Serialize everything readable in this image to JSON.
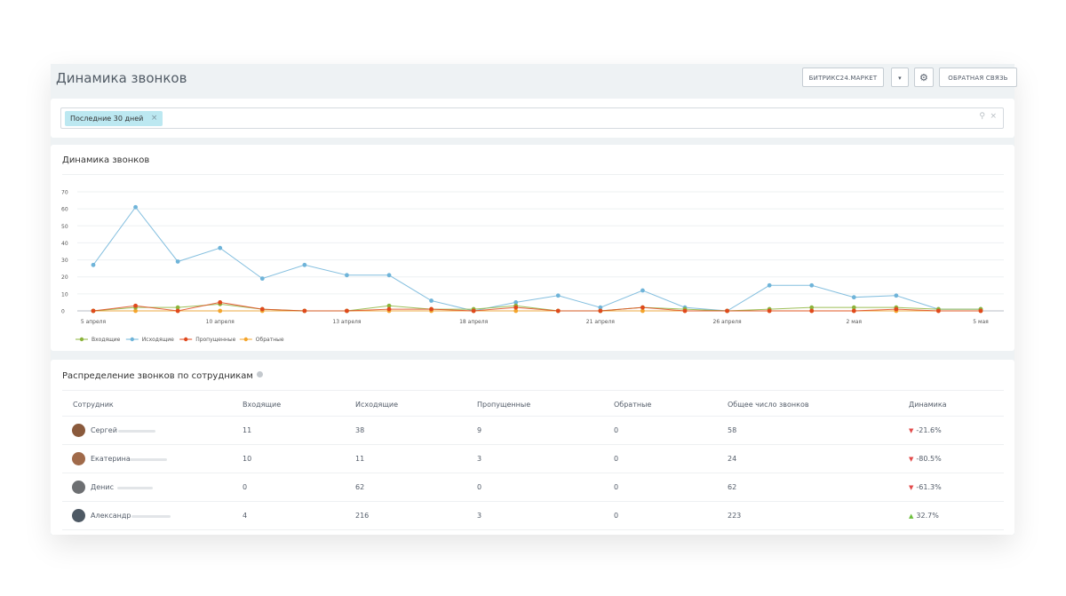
{
  "header": {
    "title": "Динамика звонков",
    "market_label": "БИТРИКС24.МАРКЕТ",
    "dropdown_icon": "▾",
    "gear_icon": "⚙",
    "feedback_label": "ОБРАТНАЯ СВЯЗЬ"
  },
  "filter": {
    "chip_label": "Последние 30 дней",
    "chip_remove_icon": "×",
    "search_icon": "⚲",
    "clear_icon": "×"
  },
  "chart_data": {
    "type": "line",
    "title": "Динамика звонков",
    "ylim": [
      0,
      70
    ],
    "yticks": [
      0,
      10,
      20,
      30,
      40,
      50,
      60,
      70
    ],
    "x_tick_labels": [
      {
        "index": 0,
        "label": "5 апреля"
      },
      {
        "index": 3,
        "label": "10 апреля"
      },
      {
        "index": 6,
        "label": "13 апреля"
      },
      {
        "index": 9,
        "label": "18 апреля"
      },
      {
        "index": 12,
        "label": "21 апреля"
      },
      {
        "index": 15,
        "label": "26 апреля"
      },
      {
        "index": 18,
        "label": "2 мая"
      },
      {
        "index": 21,
        "label": "5 мая"
      }
    ],
    "point_count": 22,
    "series": [
      {
        "name": "Входящие",
        "color": "#8cb43c",
        "values": [
          0,
          2,
          2,
          4,
          1,
          0,
          0,
          3,
          1,
          1,
          3,
          0,
          0,
          2,
          1,
          0,
          1,
          2,
          2,
          2,
          1,
          1
        ]
      },
      {
        "name": "Исходящие",
        "color": "#6fb4d9",
        "values": [
          27,
          61,
          29,
          37,
          19,
          27,
          21,
          21,
          6,
          0,
          5,
          9,
          2,
          12,
          2,
          0,
          15,
          15,
          8,
          9,
          1,
          1
        ]
      },
      {
        "name": "Пропущенные",
        "color": "#e0491d",
        "values": [
          0,
          3,
          0,
          5,
          1,
          0,
          0,
          1,
          1,
          0,
          2,
          0,
          0,
          2,
          0,
          0,
          0,
          0,
          0,
          1,
          0,
          0
        ]
      },
      {
        "name": "Обратные",
        "color": "#f4a52c",
        "values": [
          0,
          0,
          0,
          0,
          0,
          0,
          0,
          0,
          0,
          0,
          0,
          0,
          0,
          0,
          0,
          0,
          0,
          0,
          0,
          0,
          0,
          0
        ]
      }
    ],
    "grid": true,
    "legend_position": "bottom-left"
  },
  "table": {
    "title": "Распределение звонков по сотрудникам",
    "columns": [
      "Сотрудник",
      "Входящие",
      "Исходящие",
      "Пропущенные",
      "Обратные",
      "Общее число звонков",
      "Динамика"
    ],
    "rows": [
      {
        "name": "Сергей",
        "avatar_color": "#8a5a3c",
        "incoming": "11",
        "outgoing": "38",
        "missed": "9",
        "callbacks": "0",
        "total": "58",
        "trend": "-21.6%",
        "trend_dir": "down",
        "trend_icon": "▼"
      },
      {
        "name": "Екатерина",
        "avatar_color": "#a06a4a",
        "incoming": "10",
        "outgoing": "11",
        "missed": "3",
        "callbacks": "0",
        "total": "24",
        "trend": "-80.5%",
        "trend_dir": "down",
        "trend_icon": "▼"
      },
      {
        "name": "Денис",
        "avatar_color": "#6d6f72",
        "incoming": "0",
        "outgoing": "62",
        "missed": "0",
        "callbacks": "0",
        "total": "62",
        "trend": "-61.3%",
        "trend_dir": "down",
        "trend_icon": "▼"
      },
      {
        "name": "Александр",
        "avatar_color": "#4e5964",
        "incoming": "4",
        "outgoing": "216",
        "missed": "3",
        "callbacks": "0",
        "total": "223",
        "trend": "32.7%",
        "trend_dir": "up",
        "trend_icon": "▲"
      }
    ]
  }
}
